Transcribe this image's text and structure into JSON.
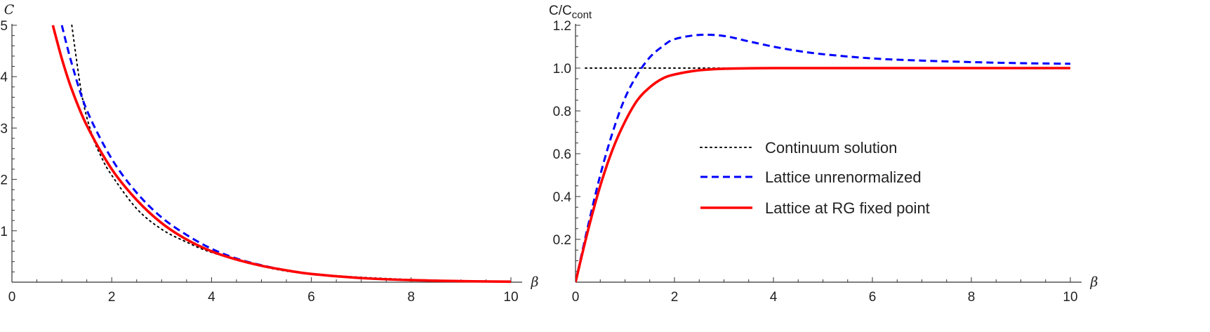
{
  "chart_data": [
    {
      "type": "line",
      "ylabel": "C",
      "xlabel": "β",
      "xlim": [
        0,
        10
      ],
      "ylim": [
        0,
        5
      ],
      "x_ticks": [
        "0",
        "2",
        "4",
        "6",
        "8",
        "10"
      ],
      "y_ticks": [
        "1",
        "2",
        "3",
        "4",
        "5"
      ],
      "series": [
        {
          "color": "#000000",
          "style": "dotted",
          "x": [
            1.2,
            1.4,
            1.6,
            1.8,
            2.0,
            2.5,
            3.0,
            3.5,
            4.0,
            5.0,
            6.0,
            8.0,
            10.0
          ],
          "y": [
            5.0,
            3.65,
            2.88,
            2.42,
            2.08,
            1.43,
            1.03,
            0.78,
            0.58,
            0.31,
            0.16,
            0.05,
            0.015
          ]
        },
        {
          "color": "#0000ff",
          "style": "dashed",
          "x": [
            1.0,
            1.2,
            1.5,
            2.0,
            2.5,
            3.0,
            3.5,
            4.0,
            4.5,
            5.0,
            5.5,
            6.0,
            7.0,
            8.0,
            9.0,
            10.0
          ],
          "y": [
            5.0,
            4.25,
            3.35,
            2.4,
            1.74,
            1.26,
            0.92,
            0.65,
            0.46,
            0.33,
            0.23,
            0.16,
            0.08,
            0.04,
            0.02,
            0.01
          ]
        },
        {
          "color": "#ff0000",
          "style": "solid",
          "x": [
            0.82,
            1.0,
            1.2,
            1.5,
            2.0,
            2.5,
            3.0,
            3.5,
            4.0,
            4.5,
            5.0,
            5.5,
            6.0,
            7.0,
            8.0,
            9.0,
            10.0
          ],
          "y": [
            5.0,
            4.35,
            3.75,
            3.05,
            2.2,
            1.6,
            1.15,
            0.83,
            0.6,
            0.44,
            0.32,
            0.23,
            0.16,
            0.08,
            0.04,
            0.02,
            0.01
          ]
        }
      ]
    },
    {
      "type": "line",
      "ylabel": "C/C",
      "ylabel_sub": "cont",
      "xlabel": "β",
      "xlim": [
        0,
        10
      ],
      "ylim": [
        0,
        1.2
      ],
      "x_ticks": [
        "0",
        "2",
        "4",
        "6",
        "8",
        "10"
      ],
      "y_ticks": [
        "0.2",
        "0.4",
        "0.6",
        "0.8",
        "1.0",
        "1.2"
      ],
      "legend_position": "center-right",
      "series": [
        {
          "name": "Continuum solution",
          "color": "#000000",
          "style": "dotted",
          "x": [
            0.2,
            10.0
          ],
          "y": [
            1.0,
            1.0
          ]
        },
        {
          "name": "Lattice unrenormalized",
          "color": "#0000ff",
          "style": "dashed",
          "x": [
            0.0,
            0.25,
            0.5,
            0.75,
            1.0,
            1.25,
            1.5,
            1.75,
            2.0,
            2.5,
            3.0,
            3.5,
            4.0,
            4.5,
            5.0,
            6.0,
            7.0,
            8.0,
            9.0,
            10.0
          ],
          "y": [
            0.0,
            0.26,
            0.5,
            0.7,
            0.86,
            0.97,
            1.05,
            1.1,
            1.135,
            1.155,
            1.15,
            1.125,
            1.1,
            1.08,
            1.065,
            1.045,
            1.035,
            1.028,
            1.023,
            1.02
          ]
        },
        {
          "name": "Lattice at RG fixed point",
          "color": "#ff0000",
          "style": "solid",
          "x": [
            0.0,
            0.25,
            0.5,
            0.75,
            1.0,
            1.25,
            1.5,
            1.75,
            2.0,
            2.5,
            3.0,
            3.5,
            4.0,
            5.0,
            6.0,
            8.0,
            10.0
          ],
          "y": [
            0.0,
            0.24,
            0.45,
            0.62,
            0.75,
            0.85,
            0.91,
            0.95,
            0.97,
            0.99,
            0.997,
            0.999,
            1.0,
            1.0,
            1.0,
            1.0,
            1.0
          ]
        }
      ]
    }
  ]
}
